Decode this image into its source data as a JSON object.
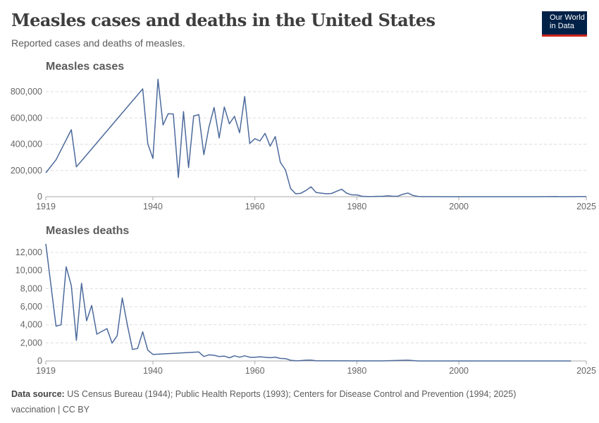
{
  "title": "Measles cases and deaths in the United States",
  "subtitle": "Reported cases and deaths of measles.",
  "logo": [
    "Our World",
    "in Data"
  ],
  "footer": {
    "source_label": "Data source:",
    "source_text": " US Census Bureau (1944); Public Health Reports (1993); Centers for Disease Control and Prevention (1994; 2025)",
    "line2": "vaccination | CC BY"
  },
  "colors": {
    "line": "#4c6a9c",
    "grid": "#dddddd",
    "axis": "#aaaaaa",
    "text": "#666666"
  },
  "chart_data": [
    {
      "type": "line",
      "title": "Measles cases",
      "ylim": [
        0,
        800000
      ],
      "yticks": [
        0,
        200000,
        400000,
        600000,
        800000
      ],
      "ytick_labels": [
        "0",
        "200,000",
        "400,000",
        "600,000",
        "800,000"
      ],
      "xlim": [
        1919,
        2025
      ],
      "xticks": [
        1919,
        1940,
        1960,
        1980,
        2000,
        2025
      ],
      "grid": true,
      "x": [
        1919,
        1921,
        1924,
        1925,
        1938,
        1939,
        1940,
        1941,
        1942,
        1943,
        1944,
        1945,
        1946,
        1947,
        1948,
        1949,
        1950,
        1951,
        1952,
        1953,
        1954,
        1955,
        1956,
        1957,
        1958,
        1959,
        1960,
        1961,
        1962,
        1963,
        1964,
        1965,
        1966,
        1967,
        1968,
        1969,
        1970,
        1971,
        1972,
        1973,
        1974,
        1975,
        1976,
        1977,
        1978,
        1979,
        1980,
        1981,
        1982,
        1983,
        1984,
        1985,
        1986,
        1987,
        1988,
        1989,
        1990,
        1991,
        1992,
        1993,
        1995,
        2000,
        2005,
        2010,
        2015,
        2019,
        2020,
        2025
      ],
      "y": [
        182000,
        281000,
        510000,
        227000,
        821000,
        403000,
        291000,
        894000,
        546000,
        632000,
        630000,
        146000,
        648000,
        222000,
        615000,
        625000,
        320000,
        530000,
        680000,
        448000,
        683000,
        555000,
        612000,
        487000,
        763000,
        406000,
        442000,
        424000,
        482000,
        385000,
        458000,
        262000,
        204000,
        63000,
        22000,
        26000,
        47000,
        75000,
        32000,
        27000,
        22000,
        24000,
        41000,
        57000,
        27000,
        14000,
        13500,
        3000,
        1700,
        1500,
        2600,
        2800,
        6300,
        3700,
        3400,
        18000,
        28000,
        9600,
        2200,
        312,
        309,
        86,
        66,
        63,
        188,
        1274,
        13,
        1500
      ]
    },
    {
      "type": "line",
      "title": "Measles deaths",
      "ylim": [
        0,
        12000
      ],
      "yticks": [
        0,
        2000,
        4000,
        6000,
        8000,
        10000,
        12000
      ],
      "ytick_labels": [
        "0",
        "2,000",
        "4,000",
        "6,000",
        "8,000",
        "10,000",
        "12,000"
      ],
      "xlim": [
        1919,
        2025
      ],
      "xticks": [
        1919,
        1940,
        1960,
        1980,
        2000,
        2025
      ],
      "grid": true,
      "x": [
        1919,
        1921,
        1922,
        1923,
        1924,
        1925,
        1926,
        1927,
        1928,
        1929,
        1931,
        1932,
        1933,
        1934,
        1935,
        1936,
        1937,
        1938,
        1939,
        1940,
        1949,
        1950,
        1951,
        1952,
        1953,
        1954,
        1955,
        1956,
        1957,
        1958,
        1959,
        1960,
        1961,
        1962,
        1963,
        1964,
        1965,
        1966,
        1967,
        1968,
        1969,
        1970,
        1971,
        1972,
        1975,
        1980,
        1985,
        1990,
        1992,
        2000,
        2010,
        2022
      ],
      "y": [
        12940,
        3840,
        4000,
        10410,
        8330,
        2280,
        8590,
        4440,
        6130,
        2960,
        3580,
        1970,
        2800,
        6960,
        3950,
        1270,
        1380,
        3220,
        1190,
        725,
        990,
        490,
        680,
        620,
        490,
        540,
        350,
        570,
        410,
        570,
        410,
        410,
        460,
        410,
        360,
        420,
        280,
        260,
        80,
        24,
        41,
        89,
        90,
        24,
        20,
        11,
        4,
        89,
        3,
        1,
        2,
        0
      ]
    }
  ]
}
